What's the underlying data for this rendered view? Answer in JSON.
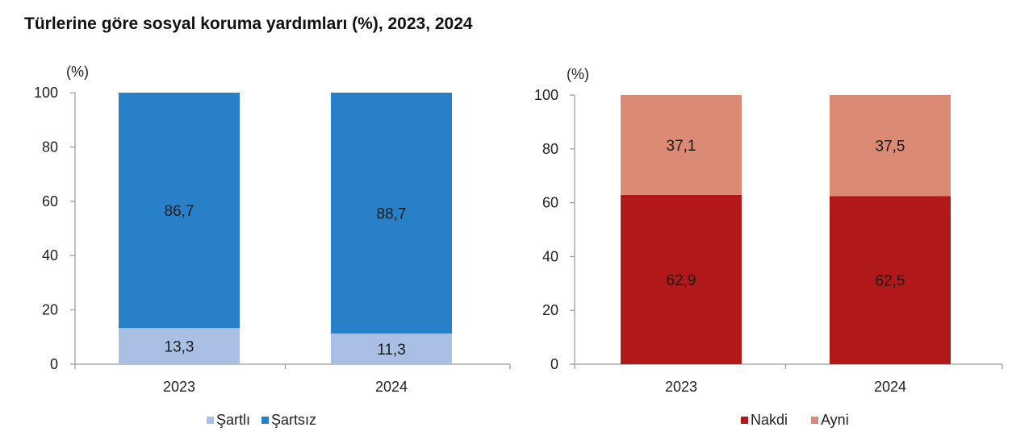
{
  "title": "Türlerine göre sosyal koruma yardımları (%), 2023, 2024",
  "chart_data": [
    {
      "type": "bar",
      "stacked": true,
      "ylabel": "(%)",
      "ylim": [
        0,
        100
      ],
      "yticks": [
        0,
        20,
        40,
        60,
        80,
        100
      ],
      "categories": [
        "2023",
        "2024"
      ],
      "series": [
        {
          "name": "Şartlı",
          "values": [
            13.3,
            11.3
          ],
          "labels": [
            "13,3",
            "11,3"
          ],
          "color": "#a9bfe3"
        },
        {
          "name": "Şartsız",
          "values": [
            86.7,
            88.7
          ],
          "labels": [
            "86,7",
            "88,7"
          ],
          "color": "#2881c8"
        }
      ],
      "legend": "bottom",
      "grid": false
    },
    {
      "type": "bar",
      "stacked": true,
      "ylabel": "(%)",
      "ylim": [
        0,
        100
      ],
      "yticks": [
        0,
        20,
        40,
        60,
        80,
        100
      ],
      "categories": [
        "2023",
        "2024"
      ],
      "series": [
        {
          "name": "Nakdi",
          "values": [
            62.9,
            62.5
          ],
          "labels": [
            "62,9",
            "62,5"
          ],
          "color": "#b0181a"
        },
        {
          "name": "Ayni",
          "values": [
            37.1,
            37.5
          ],
          "labels": [
            "37,1",
            "37,5"
          ],
          "color": "#db8a73"
        }
      ],
      "legend": "bottom",
      "grid": false
    }
  ]
}
